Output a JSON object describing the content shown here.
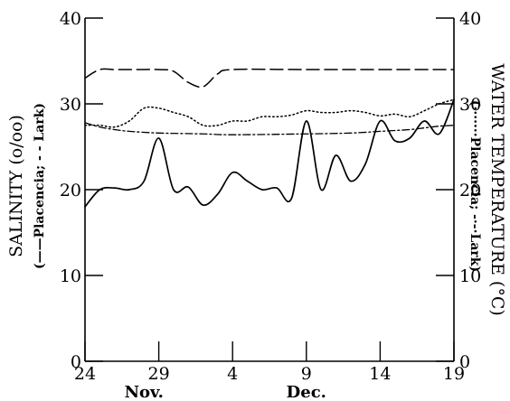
{
  "chart_data": {
    "type": "line",
    "left_axis": {
      "title": "SALINITY (o/oo)",
      "legend_note": "(——Placencia; - - Lark)",
      "ylim": [
        0,
        40
      ],
      "ticks": [
        "0",
        "10",
        "20",
        "30",
        "40"
      ]
    },
    "right_axis": {
      "title": "WATER TEMPERATURE (°C)",
      "legend_note": "(·······Placencia; -·-·Lark)",
      "ylim": [
        0,
        40
      ],
      "ticks": [
        "0",
        "10",
        "20",
        "30",
        "40"
      ]
    },
    "x_axis": {
      "xlim": [
        "Nov 24",
        "Dec 19"
      ],
      "ticks": [
        {
          "day": "Nov 24",
          "label": "24"
        },
        {
          "day": "Nov 29",
          "label": "29"
        },
        {
          "day": "Dec 4",
          "label": "4"
        },
        {
          "day": "Dec 9",
          "label": "9"
        },
        {
          "day": "Dec 14",
          "label": "14"
        },
        {
          "day": "Dec 19",
          "label": "19"
        }
      ],
      "month_labels": [
        {
          "day": "Nov 28",
          "label": "Nov."
        },
        {
          "day": "Dec 9",
          "label": "Dec."
        }
      ]
    },
    "grid": false,
    "series": [
      {
        "axis": "left",
        "style": "solid",
        "points": [
          [
            "Nov 24",
            18
          ],
          [
            "Nov 25",
            20
          ],
          [
            "Nov 26",
            20.2
          ],
          [
            "Nov 27",
            20
          ],
          [
            "Nov 28",
            21
          ],
          [
            "Nov 29",
            26
          ],
          [
            "Nov 30",
            20
          ],
          [
            "Dec 1",
            20.3
          ],
          [
            "Dec 2",
            18.2
          ],
          [
            "Dec 3",
            19.5
          ],
          [
            "Dec 4",
            22
          ],
          [
            "Dec 5",
            21
          ],
          [
            "Dec 6",
            20
          ],
          [
            "Dec 7",
            20.2
          ],
          [
            "Dec 8",
            19
          ],
          [
            "Dec 9",
            28
          ],
          [
            "Dec 10",
            20
          ],
          [
            "Dec 11",
            24
          ],
          [
            "Dec 12",
            21
          ],
          [
            "Dec 13",
            23
          ],
          [
            "Dec 14",
            28
          ],
          [
            "Dec 15",
            25.7
          ],
          [
            "Dec 16",
            26
          ],
          [
            "Dec 17",
            28
          ],
          [
            "Dec 18",
            26.5
          ],
          [
            "Dec 19",
            30.5
          ]
        ]
      },
      {
        "axis": "left",
        "style": "dashed",
        "points": [
          [
            "Nov 24",
            33
          ],
          [
            "Nov 25",
            34
          ],
          [
            "Nov 26",
            34
          ],
          [
            "Nov 27",
            34
          ],
          [
            "Nov 28",
            34
          ],
          [
            "Nov 29",
            34
          ],
          [
            "Nov 30",
            33.8
          ],
          [
            "Dec 1",
            32.5
          ],
          [
            "Dec 2",
            32
          ],
          [
            "Dec 3",
            33.5
          ],
          [
            "Dec 4",
            34
          ],
          [
            "Dec 9",
            34
          ],
          [
            "Dec 14",
            34
          ],
          [
            "Dec 19",
            34
          ]
        ]
      },
      {
        "axis": "right",
        "style": "dotted",
        "points": [
          [
            "Nov 24",
            27.5
          ],
          [
            "Nov 25",
            27.5
          ],
          [
            "Nov 26",
            27.3
          ],
          [
            "Nov 27",
            28
          ],
          [
            "Nov 28",
            29.5
          ],
          [
            "Nov 29",
            29.5
          ],
          [
            "Nov 30",
            29
          ],
          [
            "Dec 1",
            28.5
          ],
          [
            "Dec 2",
            27.5
          ],
          [
            "Dec 3",
            27.5
          ],
          [
            "Dec 4",
            28
          ],
          [
            "Dec 5",
            28
          ],
          [
            "Dec 6",
            28.5
          ],
          [
            "Dec 7",
            28.5
          ],
          [
            "Dec 8",
            28.7
          ],
          [
            "Dec 9",
            29.2
          ],
          [
            "Dec 10",
            29
          ],
          [
            "Dec 11",
            29
          ],
          [
            "Dec 12",
            29.2
          ],
          [
            "Dec 13",
            29
          ],
          [
            "Dec 14",
            28.6
          ],
          [
            "Dec 15",
            28.8
          ],
          [
            "Dec 16",
            28.5
          ],
          [
            "Dec 17",
            29.2
          ],
          [
            "Dec 18",
            30
          ],
          [
            "Dec 19",
            30.5
          ]
        ]
      },
      {
        "axis": "right",
        "style": "dash-dot",
        "points": [
          [
            "Nov 24",
            27.8
          ],
          [
            "Nov 25",
            27.3
          ],
          [
            "Nov 26",
            27
          ],
          [
            "Nov 27",
            26.8
          ],
          [
            "Nov 29",
            26.6
          ],
          [
            "Dec 2",
            26.5
          ],
          [
            "Dec 4",
            26.4
          ],
          [
            "Dec 9",
            26.5
          ],
          [
            "Dec 12",
            26.6
          ],
          [
            "Dec 14",
            26.8
          ],
          [
            "Dec 16",
            27
          ],
          [
            "Dec 17",
            27.2
          ],
          [
            "Dec 18",
            27.4
          ],
          [
            "Dec 19",
            27.5
          ]
        ]
      }
    ]
  }
}
